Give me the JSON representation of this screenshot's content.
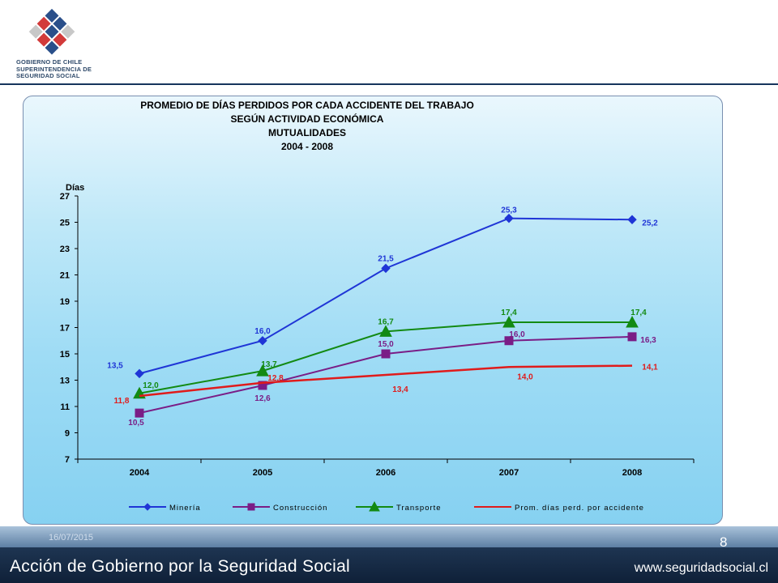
{
  "header": {
    "org_line1": "GOBIERNO DE CHILE",
    "org_line2": "SUPERINTENDENCIA DE",
    "org_line3": "SEGURIDAD SOCIAL"
  },
  "footer": {
    "date": "16/07/2015",
    "page_number": "8",
    "title": "Acción de Gobierno por la Seguridad Social",
    "url": "www.seguridadsocial.cl"
  },
  "chart_data": {
    "type": "line",
    "title_lines": [
      "PROMEDIO DE DÍAS PERDIDOS POR CADA ACCIDENTE DEL TRABAJO",
      "SEGÚN ACTIVIDAD ECONÓMICA",
      "MUTUALIDADES",
      "2004 - 2008"
    ],
    "ylabel": "Días",
    "xlabel": "",
    "categories": [
      "2004",
      "2005",
      "2006",
      "2007",
      "2008"
    ],
    "ylim": [
      7,
      27
    ],
    "yticks": [
      7,
      9,
      11,
      13,
      15,
      17,
      19,
      21,
      23,
      25,
      27
    ],
    "grid": false,
    "legend_position": "bottom",
    "series": [
      {
        "name": "Minería",
        "color": "#1f35d6",
        "marker": "diamond",
        "values": [
          13.5,
          16.0,
          21.5,
          25.3,
          25.2
        ],
        "labels": [
          "13,5",
          "16,0",
          "21,5",
          "25,3",
          "25,2"
        ]
      },
      {
        "name": "Construcción",
        "color": "#7a1d86",
        "marker": "square",
        "values": [
          10.5,
          12.6,
          15.0,
          16.0,
          16.3
        ],
        "labels": [
          "10,5",
          "12,6",
          "15,0",
          "16,0",
          "16,3"
        ]
      },
      {
        "name": "Transporte",
        "color": "#138a13",
        "marker": "triangle",
        "values": [
          12.0,
          13.7,
          16.7,
          17.4,
          17.4
        ],
        "labels": [
          "12,0",
          "13,7",
          "16,7",
          "17,4",
          "17,4"
        ]
      },
      {
        "name": "Prom. días perd. por accidente",
        "color": "#e01b1b",
        "marker": "none",
        "values": [
          11.8,
          12.8,
          13.4,
          14.0,
          14.1
        ],
        "labels": [
          "11,8",
          "12,8",
          "13,4",
          "14,0",
          "14,1"
        ]
      }
    ],
    "legend_labels": [
      "Minería",
      "Construcción",
      "Transporte",
      "Prom. días perd. por accidente"
    ]
  }
}
